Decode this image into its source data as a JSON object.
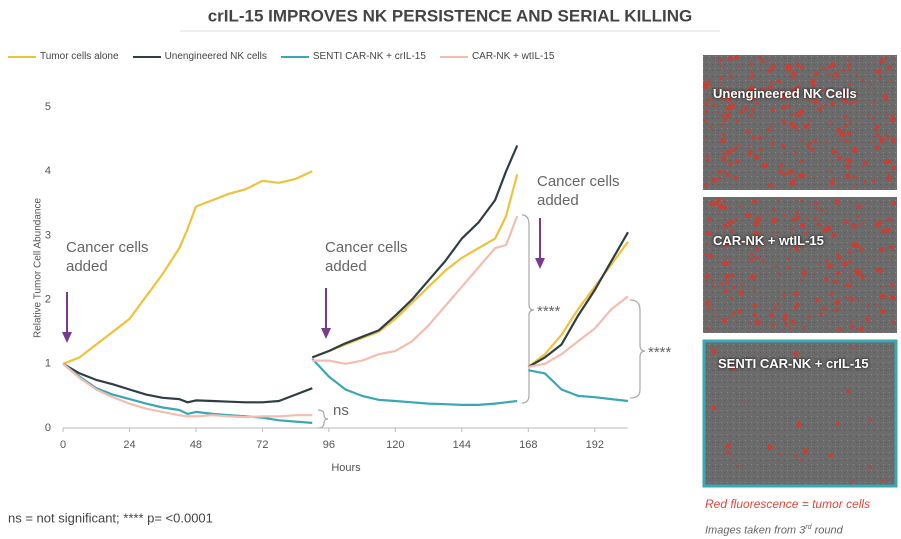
{
  "chart_data": {
    "type": "line",
    "title": "crIL-15 IMPROVES NK PERSISTENCE AND SERIAL KILLING",
    "x_label": "Hours",
    "y_label": "Relative Tumor Cell Abundance",
    "xlim": [
      0,
      204
    ],
    "ylim": [
      0,
      5
    ],
    "xticks": [
      0,
      24,
      48,
      72,
      96,
      120,
      144,
      168,
      192
    ],
    "yticks": [
      0,
      1,
      2,
      3,
      4,
      5
    ],
    "grid": false,
    "legend": "top",
    "x": [
      0,
      6,
      12,
      18,
      24,
      30,
      36,
      42,
      45,
      48,
      54,
      60,
      66,
      72,
      78,
      84,
      90,
      null,
      90,
      96,
      102,
      108,
      114,
      120,
      126,
      132,
      138,
      144,
      150,
      156,
      160,
      164,
      null,
      168,
      174,
      180,
      186,
      192,
      198,
      204
    ],
    "series": [
      {
        "name": "Tumor cells alone",
        "color": "#f0c23c",
        "values": [
          1.0,
          1.1,
          1.3,
          1.5,
          1.7,
          2.05,
          2.4,
          2.8,
          3.1,
          3.45,
          3.55,
          3.65,
          3.72,
          3.85,
          3.82,
          3.88,
          4.0,
          null,
          1.1,
          1.2,
          1.3,
          1.4,
          1.5,
          1.7,
          1.95,
          2.2,
          2.45,
          2.65,
          2.8,
          2.95,
          3.3,
          3.95,
          null,
          0.95,
          1.15,
          1.45,
          1.85,
          2.2,
          2.55,
          2.9
        ]
      },
      {
        "name": "Unengineered NK cells",
        "color": "#2e3f44",
        "values": [
          1.0,
          0.85,
          0.75,
          0.68,
          0.6,
          0.52,
          0.47,
          0.45,
          0.4,
          0.43,
          0.42,
          0.41,
          0.4,
          0.4,
          0.42,
          0.52,
          0.62,
          null,
          1.1,
          1.2,
          1.32,
          1.42,
          1.52,
          1.75,
          2.0,
          2.3,
          2.6,
          2.95,
          3.2,
          3.55,
          4.0,
          4.4,
          null,
          0.95,
          1.1,
          1.3,
          1.75,
          2.15,
          2.6,
          3.05
        ]
      },
      {
        "name": "SENTI CAR-NK + crIL-15",
        "color": "#3aa7b5",
        "values": [
          1.0,
          0.8,
          0.62,
          0.52,
          0.45,
          0.38,
          0.32,
          0.28,
          0.22,
          0.25,
          0.22,
          0.2,
          0.18,
          0.16,
          0.12,
          0.1,
          0.08,
          null,
          1.08,
          0.8,
          0.6,
          0.5,
          0.44,
          0.42,
          0.4,
          0.38,
          0.37,
          0.36,
          0.36,
          0.38,
          0.4,
          0.42,
          null,
          0.9,
          0.85,
          0.6,
          0.5,
          0.48,
          0.45,
          0.42
        ]
      },
      {
        "name": "CAR-NK + wtIL-15",
        "color": "#f5bdb0",
        "values": [
          1.0,
          0.78,
          0.6,
          0.48,
          0.38,
          0.3,
          0.25,
          0.2,
          0.18,
          0.18,
          0.2,
          0.18,
          0.17,
          0.18,
          0.18,
          0.2,
          0.2,
          null,
          1.05,
          1.05,
          1.0,
          1.05,
          1.15,
          1.2,
          1.35,
          1.6,
          1.9,
          2.2,
          2.5,
          2.8,
          2.85,
          3.3,
          null,
          0.95,
          1.0,
          1.15,
          1.35,
          1.55,
          1.85,
          2.05
        ]
      }
    ],
    "annotations": [
      "Cancer cells added",
      "Cancer cells added",
      "Cancer cells added",
      "ns",
      "****",
      "****"
    ],
    "footnote": "ns = not significant; **** p= <0.0001"
  },
  "images": {
    "panels": [
      "Unengineered NK Cells",
      "CAR-NK + wtIL-15",
      "SENTI CAR-NK + crIL-15"
    ],
    "caption": "Red fluorescence = tumor cells",
    "note": {
      "before": "Images taken from 3",
      "superscript": "rd",
      "after": " round"
    }
  }
}
